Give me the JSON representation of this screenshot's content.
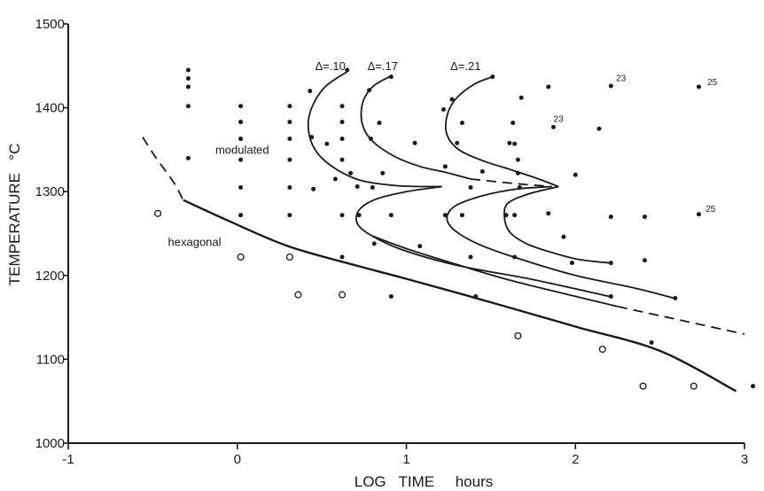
{
  "chart_data": {
    "type": "scatter",
    "xlabel": "LOG   TIME     hours",
    "ylabel": "TEMPERATURE   °C",
    "xlim": [
      -1,
      3
    ],
    "ylim": [
      1000,
      1500
    ],
    "x_ticks": [
      "-1",
      "0",
      "1",
      "2",
      "3"
    ],
    "y_ticks": [
      "1000",
      "1100",
      "1200",
      "1300",
      "1400",
      "1500"
    ],
    "grid": false,
    "annotations": [
      {
        "text": "modulated",
        "x": -0.13,
        "y": 1345,
        "size": 13
      },
      {
        "text": "hexagonal",
        "x": -0.41,
        "y": 1235,
        "size": 13
      },
      {
        "text": "Δ=.10",
        "x": 0.46,
        "y": 1445,
        "size": 13
      },
      {
        "text": "Δ=.17",
        "x": 0.77,
        "y": 1445,
        "size": 13
      },
      {
        "text": "Δ=.21",
        "x": 1.26,
        "y": 1445,
        "size": 13
      },
      {
        "text": "23",
        "x": 2.24,
        "y": 1432,
        "size": 10
      },
      {
        "text": "25",
        "x": 2.78,
        "y": 1427,
        "size": 10
      },
      {
        "text": "23",
        "x": 1.87,
        "y": 1383,
        "size": 10
      },
      {
        "text": "25",
        "x": 2.77,
        "y": 1276,
        "size": 10
      }
    ],
    "series": [
      {
        "name": "filled",
        "marker": "filled-circle",
        "points": [
          [
            -0.29,
            1445
          ],
          [
            -0.29,
            1435
          ],
          [
            -0.29,
            1425
          ],
          [
            -0.29,
            1402
          ],
          [
            -0.29,
            1340
          ],
          [
            0.02,
            1402
          ],
          [
            0.02,
            1383
          ],
          [
            0.02,
            1363
          ],
          [
            0.02,
            1338
          ],
          [
            0.02,
            1305
          ],
          [
            0.02,
            1272
          ],
          [
            0.31,
            1402
          ],
          [
            0.31,
            1383
          ],
          [
            0.31,
            1363
          ],
          [
            0.31,
            1338
          ],
          [
            0.31,
            1305
          ],
          [
            0.31,
            1272
          ],
          [
            0.43,
            1420
          ],
          [
            0.44,
            1365
          ],
          [
            0.45,
            1303
          ],
          [
            0.53,
            1357
          ],
          [
            0.58,
            1315
          ],
          [
            0.62,
            1402
          ],
          [
            0.62,
            1383
          ],
          [
            0.62,
            1363
          ],
          [
            0.62,
            1338
          ],
          [
            0.62,
            1272
          ],
          [
            0.62,
            1222
          ],
          [
            0.65,
            1445
          ],
          [
            0.67,
            1322
          ],
          [
            0.71,
            1306
          ],
          [
            0.72,
            1272
          ],
          [
            0.78,
            1421
          ],
          [
            0.79,
            1363
          ],
          [
            0.8,
            1305
          ],
          [
            0.81,
            1238
          ],
          [
            0.84,
            1382
          ],
          [
            0.86,
            1322
          ],
          [
            0.91,
            1437
          ],
          [
            0.91,
            1272
          ],
          [
            0.91,
            1175
          ],
          [
            1.05,
            1358
          ],
          [
            1.08,
            1235
          ],
          [
            1.22,
            1398
          ],
          [
            1.23,
            1330
          ],
          [
            1.23,
            1272
          ],
          [
            1.27,
            1410
          ],
          [
            1.3,
            1358
          ],
          [
            1.33,
            1382
          ],
          [
            1.33,
            1272
          ],
          [
            1.38,
            1305
          ],
          [
            1.38,
            1222
          ],
          [
            1.41,
            1175
          ],
          [
            1.45,
            1324
          ],
          [
            1.51,
            1437
          ],
          [
            1.59,
            1272
          ],
          [
            1.61,
            1358
          ],
          [
            1.63,
            1382
          ],
          [
            1.64,
            1357
          ],
          [
            1.64,
            1272
          ],
          [
            1.64,
            1222
          ],
          [
            1.66,
            1338
          ],
          [
            1.66,
            1322
          ],
          [
            1.67,
            1305
          ],
          [
            1.68,
            1412
          ],
          [
            1.84,
            1425
          ],
          [
            1.84,
            1274
          ],
          [
            1.87,
            1377
          ],
          [
            1.93,
            1246
          ],
          [
            1.98,
            1215
          ],
          [
            2.0,
            1320
          ],
          [
            2.14,
            1375
          ],
          [
            2.21,
            1426
          ],
          [
            2.21,
            1270
          ],
          [
            2.21,
            1215
          ],
          [
            2.21,
            1175
          ],
          [
            2.41,
            1270
          ],
          [
            2.41,
            1218
          ],
          [
            2.45,
            1120
          ],
          [
            2.59,
            1173
          ],
          [
            2.73,
            1425
          ],
          [
            2.73,
            1273
          ],
          [
            3.05,
            1068
          ]
        ]
      },
      {
        "name": "open",
        "marker": "open-circle",
        "points": [
          [
            -0.47,
            1274
          ],
          [
            0.02,
            1222
          ],
          [
            0.31,
            1222
          ],
          [
            0.36,
            1177
          ],
          [
            0.62,
            1177
          ],
          [
            1.66,
            1128
          ],
          [
            2.16,
            1112
          ],
          [
            2.4,
            1068
          ],
          [
            2.7,
            1068
          ]
        ]
      }
    ],
    "curves": [
      {
        "style": "bold",
        "points": [
          [
            -0.32,
            1290
          ],
          [
            -0.05,
            1265
          ],
          [
            0.3,
            1235
          ],
          [
            0.7,
            1212
          ],
          [
            1.0,
            1196
          ],
          [
            1.5,
            1168
          ],
          [
            2.0,
            1139
          ],
          [
            2.5,
            1110
          ],
          [
            2.95,
            1062
          ]
        ]
      },
      {
        "style": "dashed",
        "points": [
          [
            -0.56,
            1365
          ],
          [
            -0.48,
            1340
          ],
          [
            -0.38,
            1312
          ],
          [
            -0.32,
            1290
          ]
        ]
      },
      {
        "style": "solid",
        "points": [
          [
            0.65,
            1443
          ],
          [
            0.52,
            1425
          ],
          [
            0.44,
            1400
          ],
          [
            0.42,
            1375
          ],
          [
            0.46,
            1350
          ],
          [
            0.56,
            1330
          ],
          [
            0.72,
            1314
          ],
          [
            0.95,
            1307
          ],
          [
            1.21,
            1306
          ]
        ]
      },
      {
        "style": "solid",
        "points": [
          [
            1.21,
            1306
          ],
          [
            1.0,
            1300
          ],
          [
            0.82,
            1291
          ],
          [
            0.72,
            1278
          ],
          [
            0.71,
            1262
          ],
          [
            0.79,
            1248
          ],
          [
            0.97,
            1231
          ],
          [
            1.3,
            1212
          ],
          [
            1.75,
            1195
          ],
          [
            2.2,
            1175
          ]
        ]
      },
      {
        "style": "solid",
        "points": [
          [
            0.91,
            1438
          ],
          [
            0.8,
            1425
          ],
          [
            0.74,
            1405
          ],
          [
            0.74,
            1380
          ],
          [
            0.8,
            1360
          ],
          [
            0.93,
            1342
          ],
          [
            1.08,
            1330
          ],
          [
            1.23,
            1323
          ],
          [
            1.38,
            1315
          ]
        ]
      },
      {
        "style": "dashed",
        "points": [
          [
            1.38,
            1315
          ],
          [
            1.62,
            1310
          ],
          [
            1.86,
            1306
          ]
        ]
      },
      {
        "style": "solid",
        "points": [
          [
            1.86,
            1306
          ],
          [
            1.65,
            1303
          ],
          [
            1.45,
            1295
          ],
          [
            1.29,
            1283
          ],
          [
            1.24,
            1268
          ],
          [
            1.29,
            1253
          ],
          [
            1.43,
            1237
          ],
          [
            1.65,
            1221
          ],
          [
            2.0,
            1200
          ],
          [
            2.35,
            1185
          ],
          [
            2.6,
            1172
          ]
        ]
      },
      {
        "style": "solid",
        "points": [
          [
            1.51,
            1437
          ],
          [
            1.4,
            1428
          ],
          [
            1.29,
            1410
          ],
          [
            1.24,
            1390
          ],
          [
            1.24,
            1368
          ],
          [
            1.31,
            1350
          ],
          [
            1.45,
            1337
          ],
          [
            1.62,
            1326
          ],
          [
            1.77,
            1316
          ],
          [
            1.9,
            1306
          ]
        ]
      },
      {
        "style": "solid",
        "points": [
          [
            1.9,
            1306
          ],
          [
            1.72,
            1297
          ],
          [
            1.6,
            1286
          ],
          [
            1.58,
            1270
          ],
          [
            1.61,
            1252
          ],
          [
            1.71,
            1238
          ],
          [
            1.85,
            1228
          ],
          [
            2.02,
            1219
          ],
          [
            2.2,
            1215
          ]
        ]
      },
      {
        "style": "solid",
        "points": [
          [
            0.8,
            1247
          ],
          [
            1.0,
            1232
          ],
          [
            1.3,
            1213
          ],
          [
            1.6,
            1195
          ],
          [
            2.0,
            1175
          ],
          [
            2.25,
            1163
          ]
        ]
      },
      {
        "style": "dashed",
        "points": [
          [
            2.25,
            1163
          ],
          [
            2.5,
            1152
          ],
          [
            2.75,
            1141
          ],
          [
            3.0,
            1130
          ]
        ]
      }
    ]
  }
}
